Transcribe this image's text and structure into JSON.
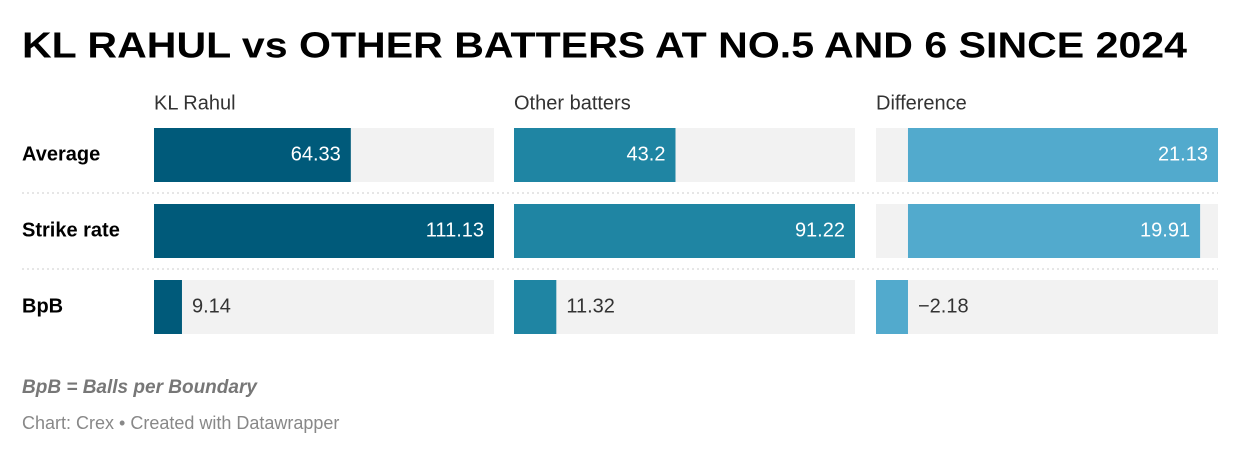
{
  "chart_data": {
    "type": "bar",
    "title": "KL RAHUL vs OTHER BATTERS AT NO.5 AND 6 SINCE 2024",
    "categories": [
      "Average",
      "Strike rate",
      "BpB"
    ],
    "series": [
      {
        "name": "KL Rahul",
        "color": "#005a7a",
        "values": [
          64.33,
          111.13,
          9.14
        ]
      },
      {
        "name": "Other batters",
        "color": "#1f85a3",
        "values": [
          43.2,
          91.22,
          11.32
        ]
      },
      {
        "name": "Difference",
        "color": "#52aacd",
        "values": [
          21.13,
          19.91,
          -2.18
        ],
        "value_labels": [
          "21.13",
          "19.91",
          "−2.18"
        ]
      }
    ],
    "notes": "BpB = Balls per Boundary",
    "source": "Chart: Crex • Created with Datawrapper"
  }
}
